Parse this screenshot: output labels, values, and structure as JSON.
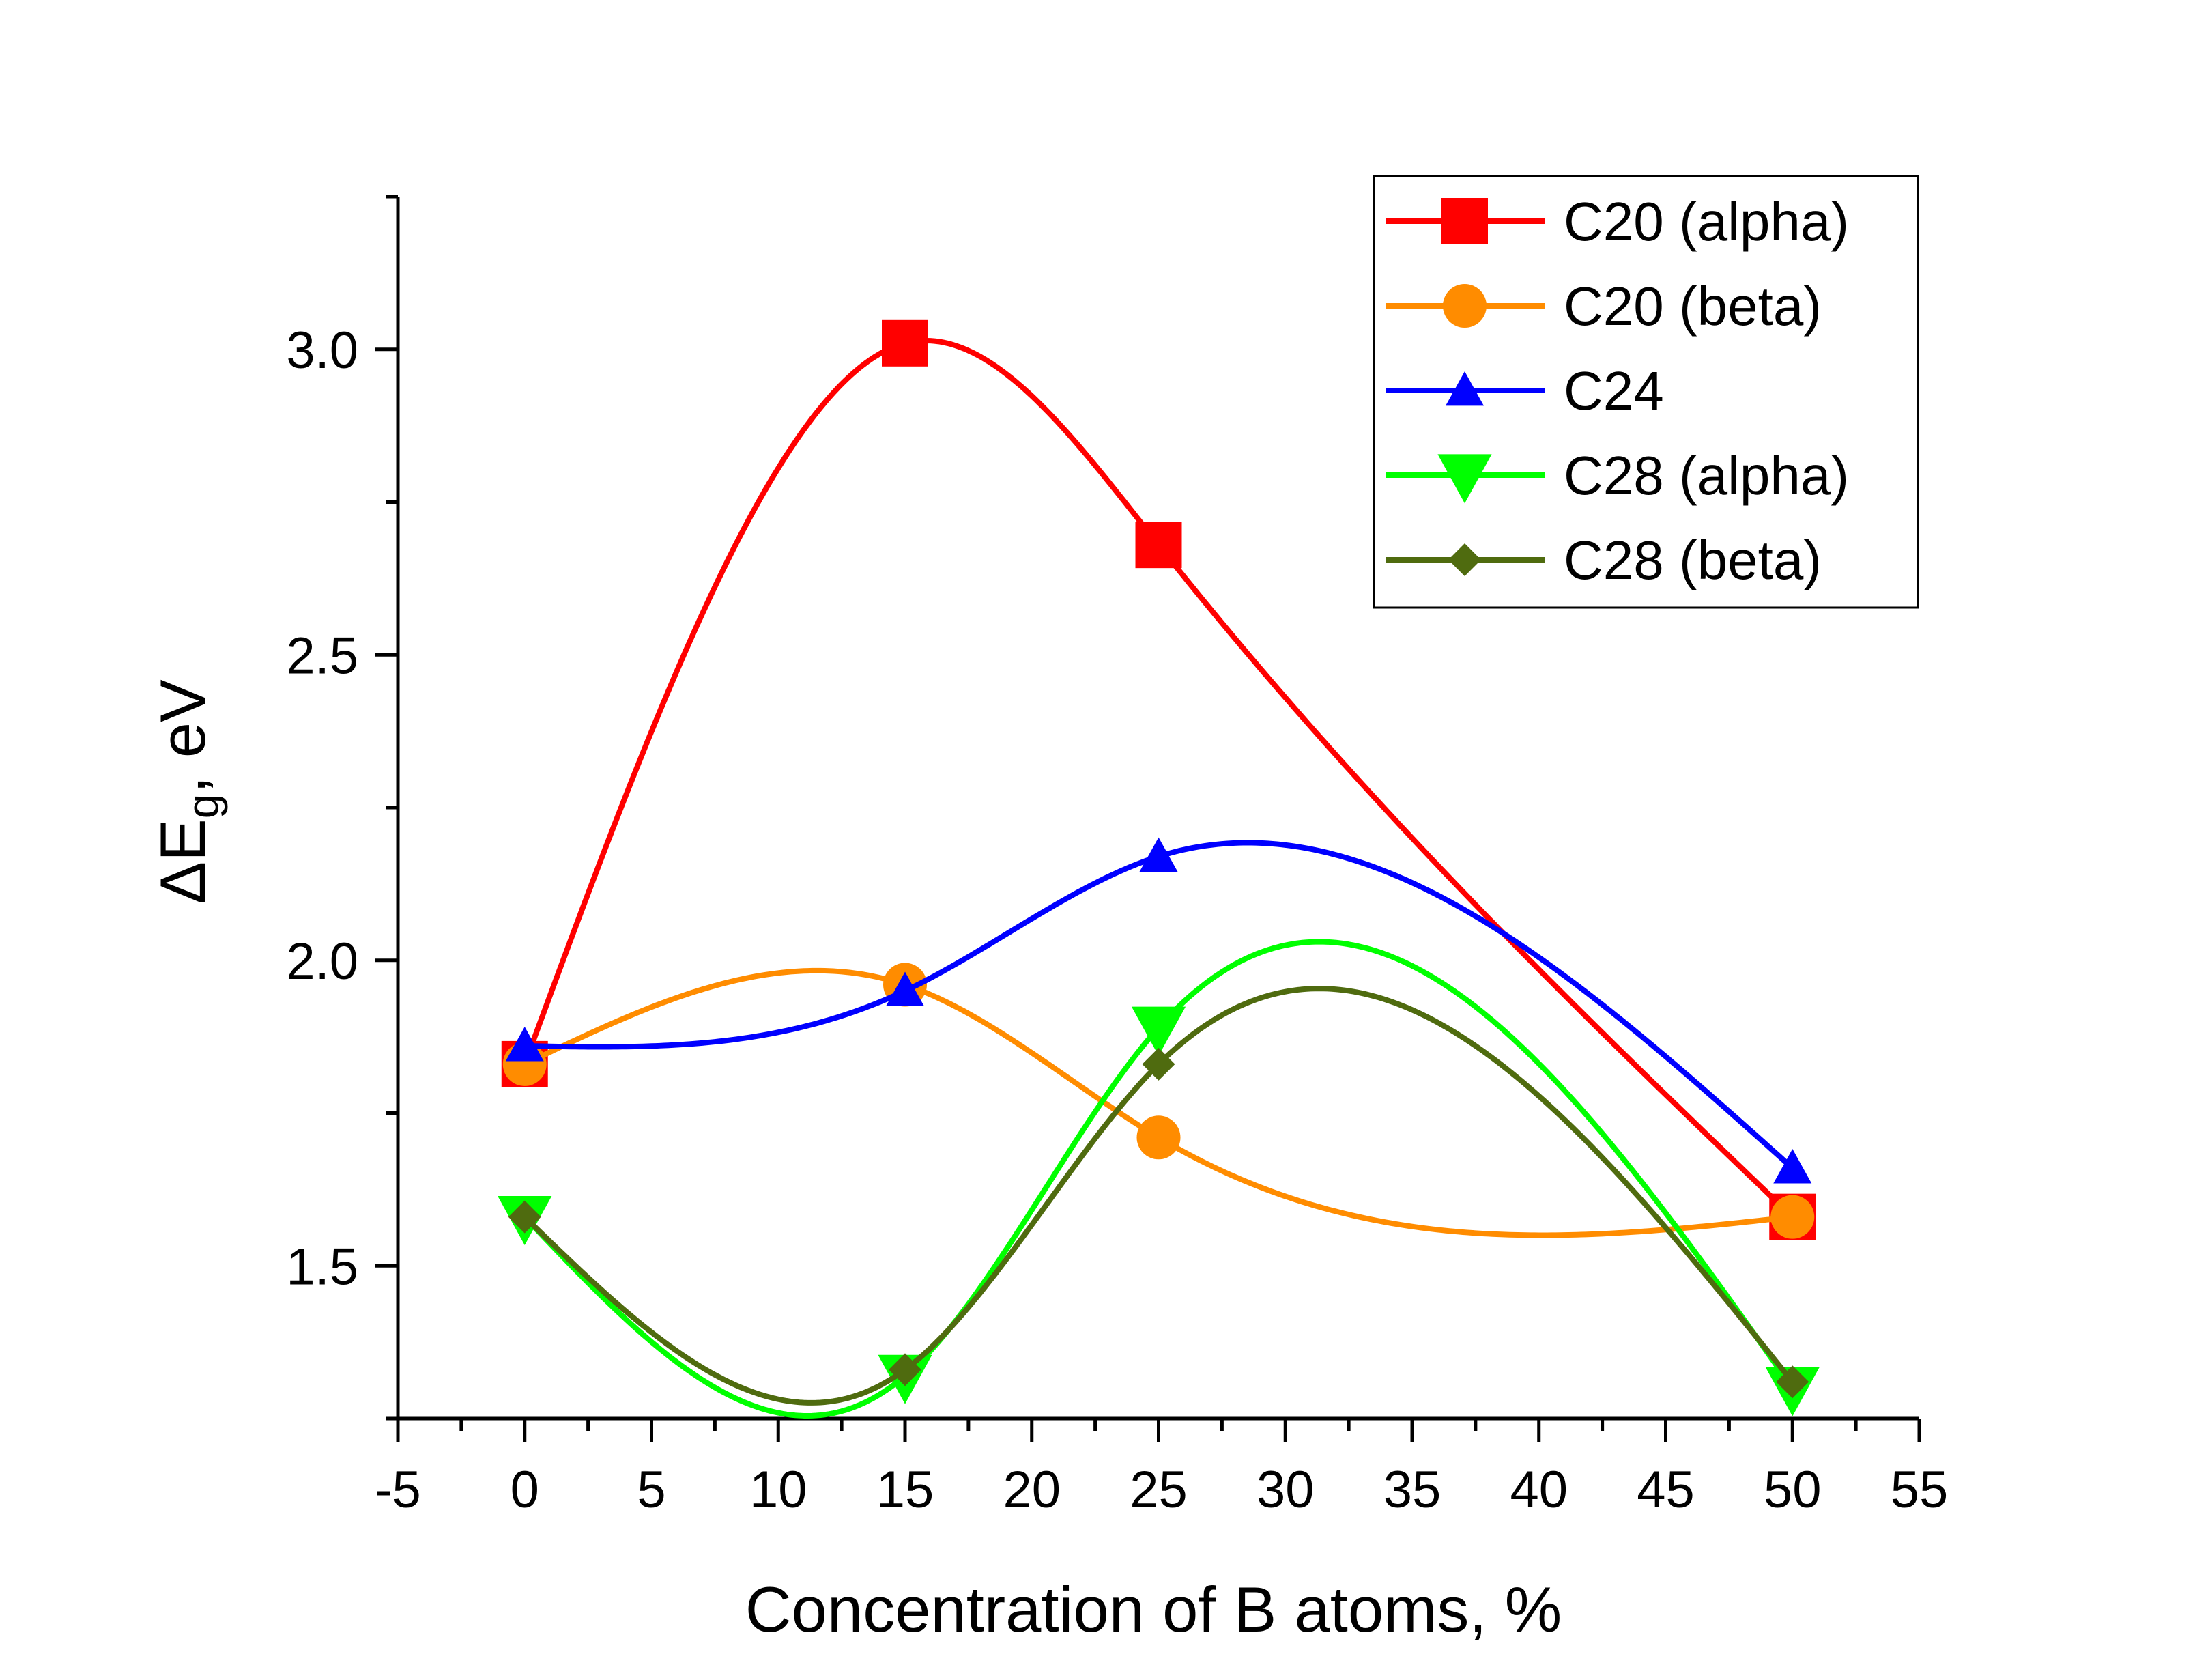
{
  "chart_data": {
    "type": "line",
    "title": "",
    "xlabel": "Concentration of B atoms, %",
    "ylabel": {
      "prefix": "ΔE",
      "sub": "g",
      "suffix": ", eV"
    },
    "xlim": [
      -5,
      55
    ],
    "ylim": [
      1.25,
      3.25
    ],
    "x_ticks": [
      "-5",
      "0",
      "5",
      "10",
      "15",
      "20",
      "25",
      "30",
      "35",
      "40",
      "45",
      "50",
      "55"
    ],
    "y_ticks": [
      "1.5",
      "2.0",
      "2.5",
      "3.0"
    ],
    "legend_position": "top-right",
    "series": [
      {
        "name": "C20 (alpha)",
        "color": "#ff0000",
        "marker": "square",
        "x": [
          0,
          15,
          25,
          50
        ],
        "values": [
          1.83,
          3.01,
          2.68,
          1.58
        ]
      },
      {
        "name": "C20 (beta)",
        "color": "#ff8c00",
        "marker": "circle",
        "x": [
          0,
          15,
          25,
          50
        ],
        "values": [
          1.83,
          1.96,
          1.71,
          1.58
        ]
      },
      {
        "name": "C24",
        "color": "#0000ff",
        "marker": "triangle-up",
        "x": [
          0,
          15,
          25,
          50
        ],
        "values": [
          1.86,
          1.95,
          2.17,
          1.66
        ]
      },
      {
        "name": "C28 (alpha)",
        "color": "#00ff00",
        "marker": "triangle-down",
        "x": [
          0,
          15,
          25,
          50
        ],
        "values": [
          1.58,
          1.32,
          1.89,
          1.3
        ]
      },
      {
        "name": "C28 (beta)",
        "color": "#4f6b0f",
        "marker": "diamond",
        "x": [
          0,
          15,
          25,
          50
        ],
        "values": [
          1.58,
          1.33,
          1.83,
          1.31
        ]
      }
    ]
  }
}
